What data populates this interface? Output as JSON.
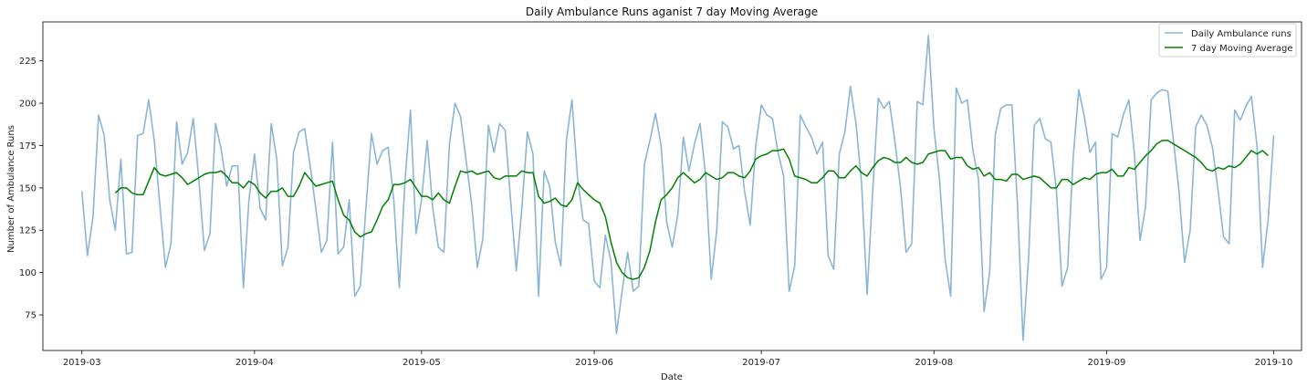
{
  "chart_data": {
    "type": "line",
    "title": "Daily Ambulance Runs aganist 7 day Moving Average",
    "xlabel": "Date",
    "ylabel": "Number of Ambulance Runs",
    "x_start": "2019-03-01",
    "xlim": [
      "2019-02-22",
      "2019-10-06"
    ],
    "x_ticks": [
      "2019-03",
      "2019-04",
      "2019-05",
      "2019-06",
      "2019-07",
      "2019-08",
      "2019-09",
      "2019-10"
    ],
    "ylim": [
      54,
      248
    ],
    "y_ticks": [
      75,
      100,
      125,
      150,
      175,
      200,
      225
    ],
    "grid": false,
    "legend_position": "upper-right",
    "series": [
      {
        "name": "Daily Ambulance runs",
        "color": "#8ab6d6",
        "values": [
          148,
          110,
          133,
          193,
          181,
          143,
          125,
          167,
          111,
          112,
          181,
          182,
          202,
          178,
          140,
          103,
          117,
          189,
          164,
          171,
          191,
          155,
          113,
          123,
          188,
          173,
          151,
          163,
          163,
          91,
          143,
          170,
          138,
          131,
          188,
          167,
          104,
          115,
          171,
          183,
          185,
          163,
          138,
          112,
          119,
          177,
          111,
          115,
          143,
          86,
          92,
          138,
          182,
          164,
          172,
          174,
          143,
          91,
          153,
          196,
          123,
          143,
          178,
          138,
          115,
          112,
          176,
          200,
          192,
          166,
          140,
          103,
          120,
          187,
          171,
          188,
          184,
          142,
          101,
          138,
          183,
          170,
          86,
          160,
          151,
          118,
          104,
          178,
          202,
          156,
          131,
          129,
          95,
          91,
          122,
          107,
          64,
          89,
          112,
          89,
          92,
          164,
          178,
          194,
          175,
          130,
          115,
          134,
          180,
          160,
          176,
          188,
          157,
          96,
          125,
          189,
          186,
          173,
          175,
          148,
          128,
          175,
          199,
          193,
          191,
          171,
          157,
          89,
          104,
          193,
          186,
          180,
          170,
          177,
          110,
          102,
          170,
          183,
          210,
          188,
          153,
          87,
          148,
          203,
          197,
          201,
          177,
          150,
          112,
          117,
          201,
          199,
          240,
          185,
          155,
          108,
          86,
          209,
          200,
          202,
          172,
          155,
          77,
          100,
          181,
          197,
          199,
          199,
          140,
          60,
          109,
          187,
          191,
          179,
          177,
          148,
          92,
          103,
          168,
          208,
          192,
          171,
          177,
          96,
          103,
          182,
          180,
          193,
          202,
          170,
          119,
          139,
          202,
          206,
          208,
          207,
          178,
          148,
          106,
          125,
          186,
          193,
          187,
          174,
          149,
          121,
          117,
          196,
          190,
          198,
          204,
          175,
          103,
          131,
          181
        ]
      },
      {
        "name": "7 day Moving Average",
        "color": "#008000",
        "start_index": 6,
        "values": [
          147,
          150,
          150,
          147,
          146,
          146,
          154,
          162,
          158,
          157,
          158,
          159,
          156,
          152,
          154,
          156,
          158,
          159,
          159,
          160,
          157,
          153,
          153,
          150,
          154,
          152,
          147,
          144,
          148,
          148,
          150,
          145,
          145,
          151,
          159,
          155,
          151,
          152,
          153,
          154,
          143,
          134,
          131,
          124,
          121,
          123,
          124,
          131,
          139,
          143,
          152,
          152,
          153,
          155,
          150,
          145,
          145,
          143,
          147,
          143,
          141,
          151,
          160,
          159,
          160,
          158,
          159,
          160,
          156,
          155,
          157,
          157,
          157,
          160,
          159,
          159,
          145,
          141,
          142,
          144,
          140,
          139,
          143,
          153,
          149,
          146,
          143,
          141,
          133,
          118,
          106,
          100,
          97,
          96,
          97,
          103,
          113,
          130,
          143,
          146,
          150,
          156,
          159,
          156,
          153,
          155,
          159,
          157,
          155,
          156,
          159,
          159,
          157,
          156,
          160,
          167,
          169,
          170,
          172,
          172,
          173,
          167,
          157,
          156,
          155,
          153,
          153,
          156,
          160,
          160,
          156,
          156,
          160,
          163,
          159,
          157,
          162,
          166,
          168,
          167,
          165,
          165,
          168,
          165,
          164,
          165,
          170,
          171,
          172,
          172,
          167,
          168,
          168,
          163,
          161,
          162,
          157,
          159,
          155,
          155,
          154,
          158,
          158,
          155,
          156,
          157,
          156,
          153,
          150,
          150,
          155,
          155,
          152,
          154,
          156,
          155,
          158,
          159,
          159,
          161,
          157,
          157,
          162,
          161,
          165,
          169,
          172,
          176,
          178,
          178,
          176,
          174,
          172,
          170,
          168,
          165,
          161,
          160,
          162,
          161,
          163,
          162,
          164,
          168,
          172,
          170,
          172,
          169
        ]
      }
    ]
  }
}
